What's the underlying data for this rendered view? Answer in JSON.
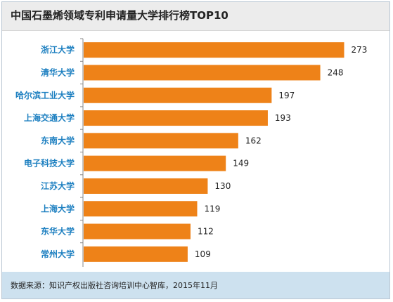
{
  "header": {
    "title": "中国石墨烯领域专利申请量大学排行榜TOP10"
  },
  "footer": {
    "source": "数据来源：知识产权出版社咨询培训中心智库，2015年11月"
  },
  "colors": {
    "bar": "#ee8218",
    "category_text": "#1c7fc0",
    "axis": "#888888",
    "source_bg": "#cde1ef"
  },
  "chart_data": {
    "type": "bar",
    "orientation": "horizontal",
    "title": "中国石墨烯领域专利申请量大学排行榜TOP10",
    "categories": [
      "浙江大学",
      "清华大学",
      "哈尔滨工业大学",
      "上海交通大学",
      "东南大学",
      "电子科技大学",
      "江苏大学",
      "上海大学",
      "东华大学",
      "常州大学"
    ],
    "values": [
      273,
      248,
      197,
      193,
      162,
      149,
      130,
      119,
      112,
      109
    ],
    "xlim": [
      0,
      280
    ],
    "grid": false,
    "legend": "none",
    "data_labels": true
  }
}
